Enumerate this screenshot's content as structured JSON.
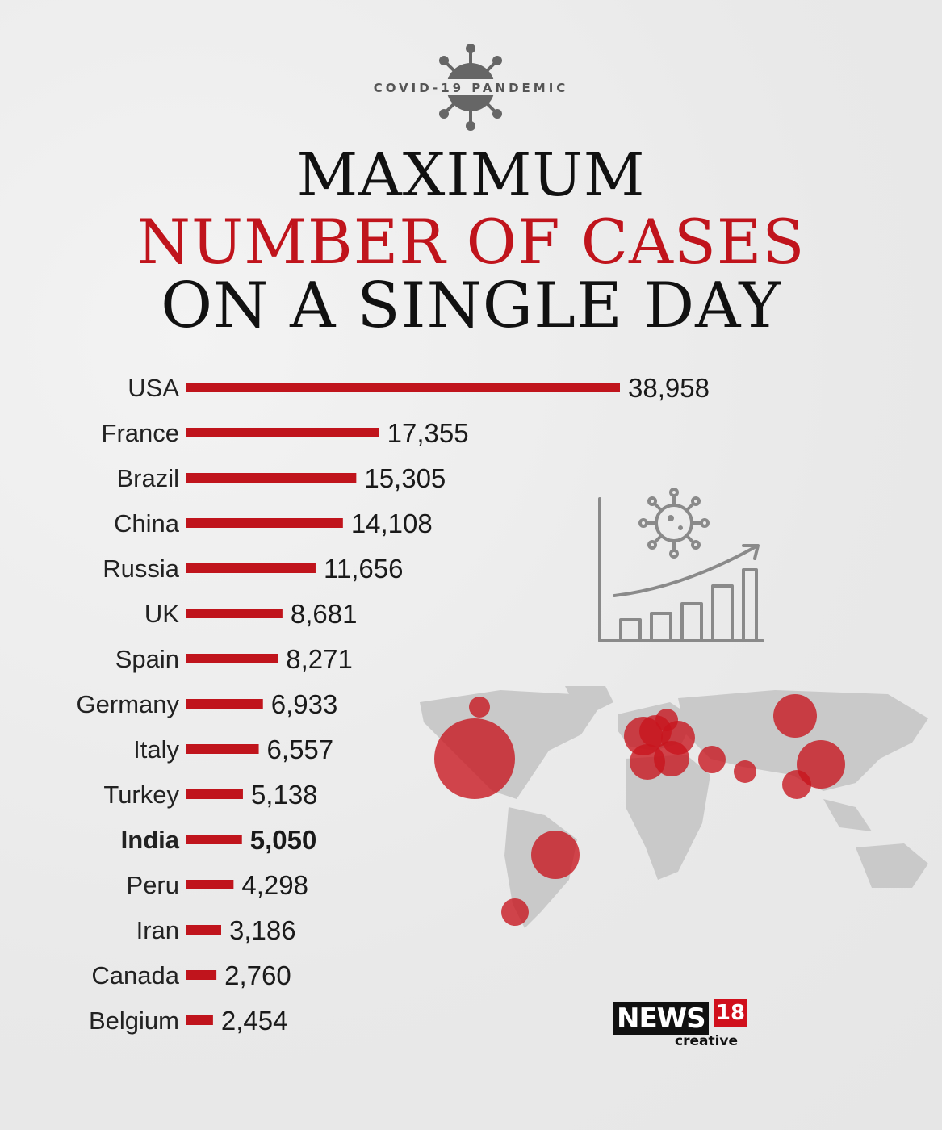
{
  "header": {
    "tag": "COVID-19 PANDEMIC",
    "title_line1": "MAXIMUM",
    "title_line2": "NUMBER OF CASES",
    "title_line3": "ON A SINGLE DAY"
  },
  "colors": {
    "bar": "#c0141c",
    "title_accent": "#c0141c",
    "map": "#c9c9c9",
    "bubble": "#c8141e",
    "icon": "#8a8a8a"
  },
  "chart_data": {
    "type": "bar",
    "orientation": "horizontal",
    "categories": [
      "USA",
      "France",
      "Brazil",
      "China",
      "Russia",
      "UK",
      "Spain",
      "Germany",
      "Italy",
      "Turkey",
      "India",
      "Peru",
      "Iran",
      "Canada",
      "Belgium"
    ],
    "values": [
      38958,
      17355,
      15305,
      14108,
      11656,
      8681,
      8271,
      6933,
      6557,
      5138,
      5050,
      4298,
      3186,
      2760,
      2454
    ],
    "value_labels": [
      "38,958",
      "17,355",
      "15,305",
      "14,108",
      "11,656",
      "8,681",
      "8,271",
      "6,933",
      "6,557",
      "5,138",
      "5,050",
      "4,298",
      "3,186",
      "2,760",
      "2,454"
    ],
    "highlight": "India",
    "title": "MAXIMUM NUMBER OF CASES ON A SINGLE DAY",
    "xlabel": "",
    "ylabel": "",
    "grid": false
  },
  "icons": {
    "virus": "virus-icon",
    "growth_chart": "growth-chart-icon",
    "map": "world-map-icon"
  },
  "logo": {
    "news": "NEWS",
    "number": "18",
    "creative": "creative"
  }
}
